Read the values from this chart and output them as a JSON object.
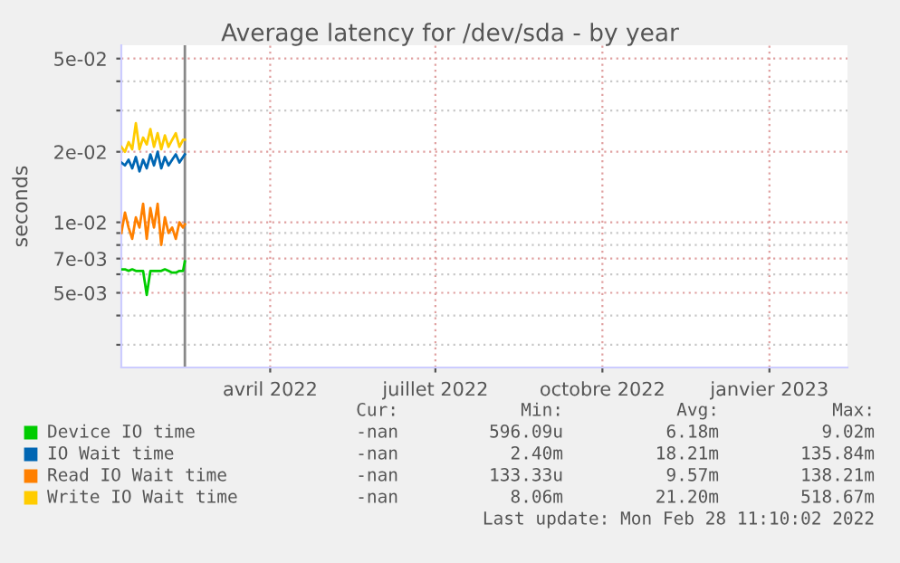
{
  "chart_data": {
    "type": "line",
    "title": "Average latency for /dev/sda - by year",
    "ylabel": "seconds",
    "log": "y",
    "grid": true,
    "legend": "bottom left",
    "marker": "none",
    "line_style": "solid",
    "xlim": [
      "2022-01-24",
      "2023-02-28"
    ],
    "xticks": [
      {
        "value": "2022-04-16",
        "label": "avril 2022"
      },
      {
        "value": "2022-07-16",
        "label": "juillet 2022"
      },
      {
        "value": "2022-10-16",
        "label": "octobre 2022"
      },
      {
        "value": "2023-01-16",
        "label": "janvier 2023"
      }
    ],
    "ylim": [
      0.0024,
      0.057
    ],
    "yticks": [
      {
        "value": 0.003,
        "label": null
      },
      {
        "value": 0.004,
        "label": null
      },
      {
        "value": 0.005,
        "label": "5e-03"
      },
      {
        "value": 0.006,
        "label": null
      },
      {
        "value": 0.007,
        "label": "7e-03"
      },
      {
        "value": 0.008,
        "label": null
      },
      {
        "value": 0.009,
        "label": null
      },
      {
        "value": 0.01,
        "label": "1e-02"
      },
      {
        "value": 0.02,
        "label": "2e-02"
      },
      {
        "value": 0.03,
        "label": null
      },
      {
        "value": 0.04,
        "label": null
      },
      {
        "value": 0.05,
        "label": "5e-02"
      }
    ],
    "x": [
      "2022-01-24",
      "2022-01-26",
      "2022-01-28",
      "2022-01-30",
      "2022-02-01",
      "2022-02-03",
      "2022-02-05",
      "2022-02-07",
      "2022-02-09",
      "2022-02-11",
      "2022-02-13",
      "2022-02-15",
      "2022-02-17",
      "2022-02-19",
      "2022-02-21",
      "2022-02-23",
      "2022-02-25",
      "2022-02-27",
      "2022-02-28"
    ],
    "series": [
      {
        "name": "Device IO time",
        "color": "#00cc00",
        "values": [
          0.0063,
          0.0063,
          0.0062,
          0.0063,
          0.0062,
          0.0062,
          0.0062,
          0.0049,
          0.0062,
          0.0062,
          0.0062,
          0.0062,
          0.0063,
          0.0062,
          0.0061,
          0.0061,
          0.0062,
          0.0062,
          0.0068
        ]
      },
      {
        "name": "IO Wait time",
        "color": "#0066b3",
        "values": [
          0.018,
          0.0175,
          0.0185,
          0.017,
          0.019,
          0.0165,
          0.0185,
          0.017,
          0.0195,
          0.0175,
          0.02,
          0.017,
          0.019,
          0.0175,
          0.0185,
          0.0195,
          0.018,
          0.019,
          0.0195
        ]
      },
      {
        "name": "Read IO Wait time",
        "color": "#ff8000",
        "values": [
          0.009,
          0.011,
          0.0095,
          0.0085,
          0.0105,
          0.0095,
          0.012,
          0.0085,
          0.0115,
          0.0095,
          0.012,
          0.008,
          0.0105,
          0.009,
          0.0095,
          0.0085,
          0.01,
          0.0095,
          0.0098
        ]
      },
      {
        "name": "Write IO Wait time",
        "color": "#ffcc00",
        "values": [
          0.021,
          0.02,
          0.022,
          0.0205,
          0.0265,
          0.0205,
          0.023,
          0.0215,
          0.025,
          0.021,
          0.024,
          0.0205,
          0.0235,
          0.021,
          0.0225,
          0.024,
          0.021,
          0.0225,
          0.0225
        ]
      }
    ],
    "ref_lines": [
      {
        "axis": "x",
        "value": "2022-02-28",
        "label": null,
        "color": "#888888"
      }
    ],
    "annotations": [
      "Cur:",
      "Min:",
      "Avg:",
      "Max:",
      "-nan",
      "596.09u",
      "6.18m",
      "9.02m",
      "-nan",
      "2.40m",
      "18.21m",
      "135.84m",
      "-nan",
      "133.33u",
      "9.57m",
      "138.21m",
      "-nan",
      "8.06m",
      "21.20m",
      "518.67m",
      "Last update: Mon Feb 28 11:10:02 2022"
    ]
  }
}
